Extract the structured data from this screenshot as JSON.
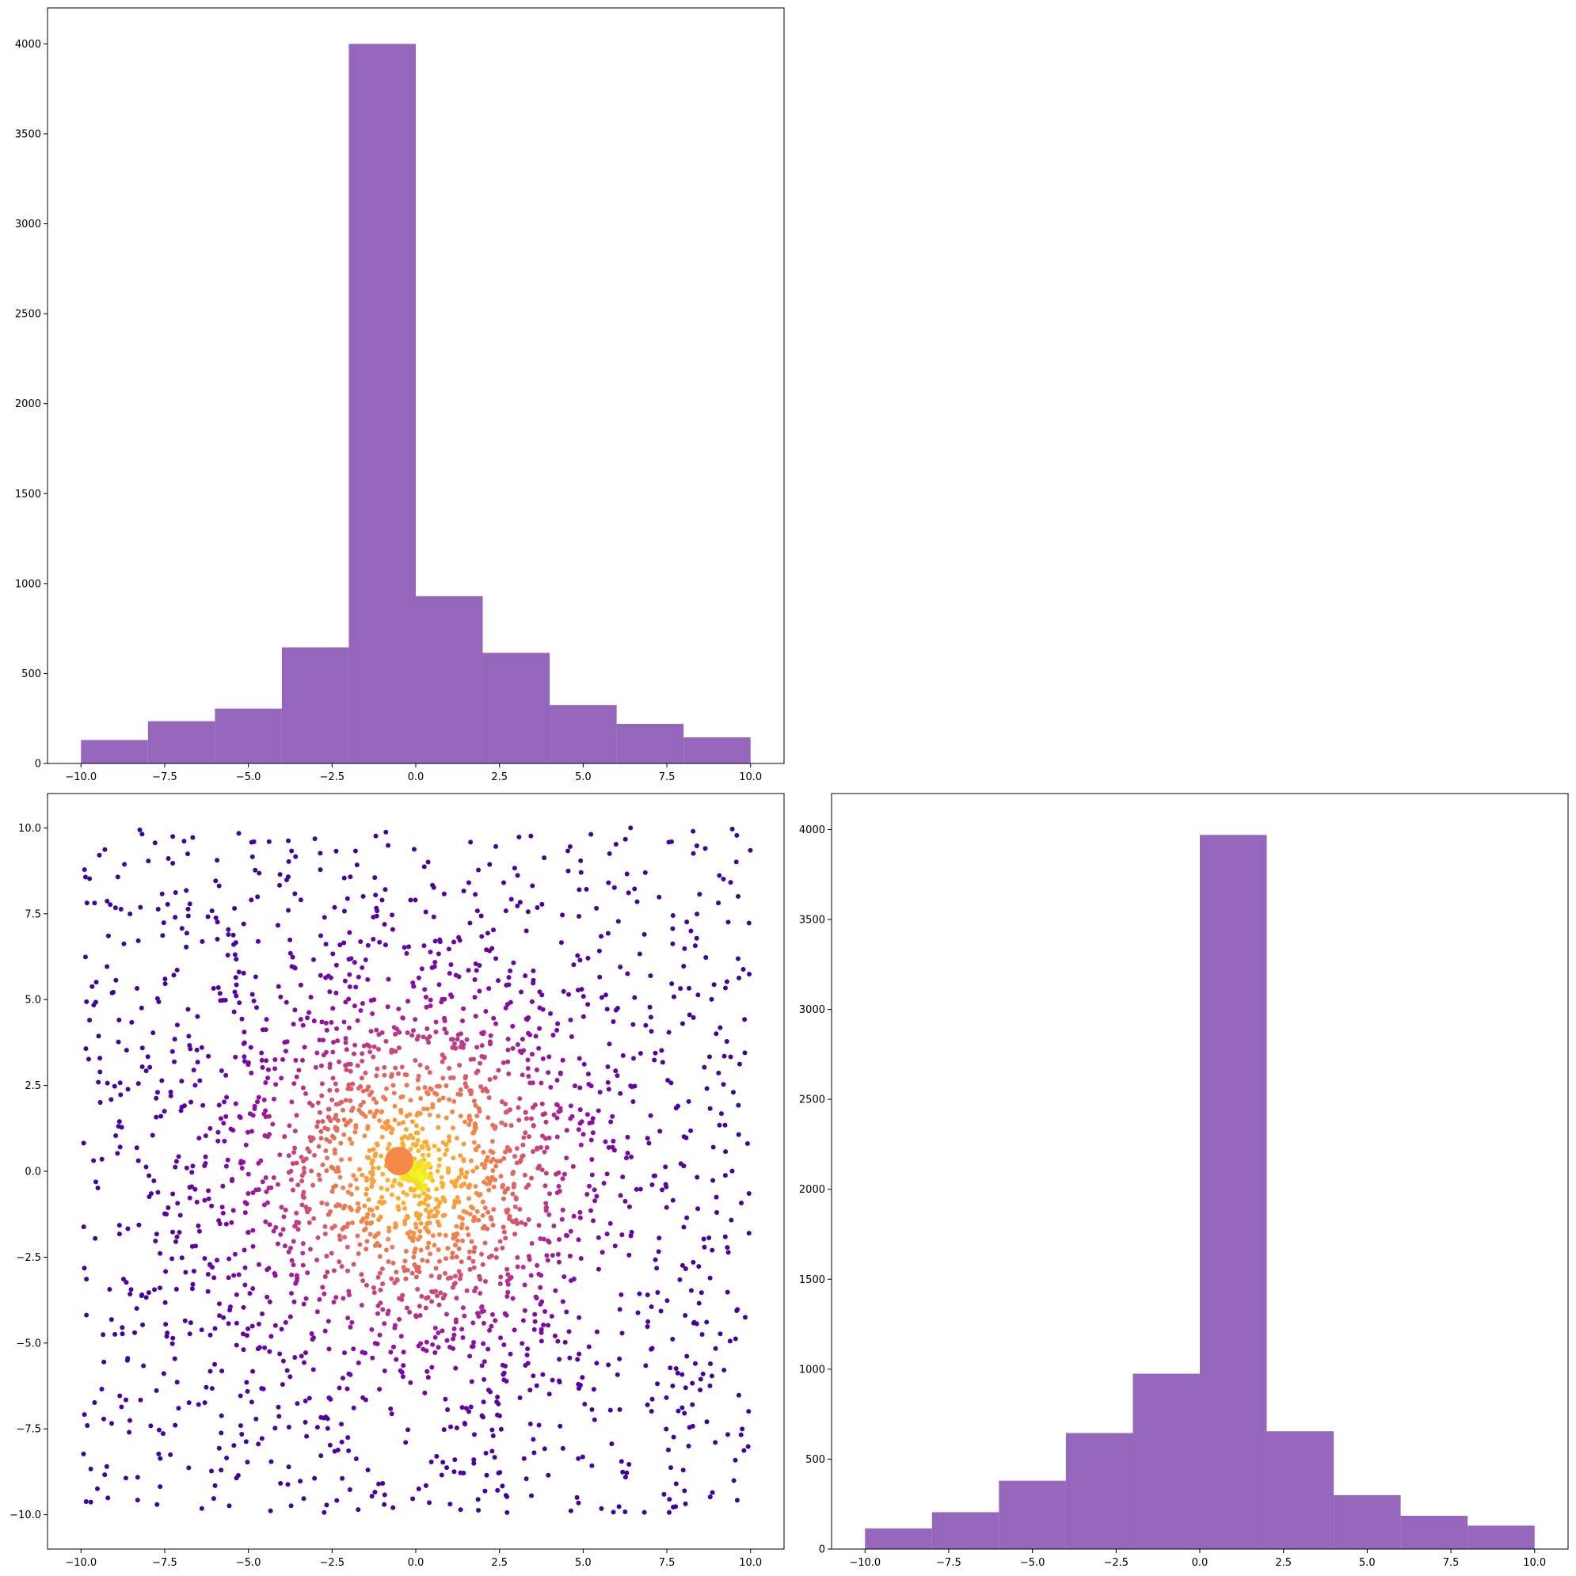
{
  "chart_data": [
    {
      "panel": "top-left",
      "type": "bar",
      "subtype": "histogram",
      "bin_edges": [
        -10,
        -8,
        -6,
        -4,
        -2,
        0,
        2,
        4,
        6,
        8,
        10
      ],
      "values": [
        130,
        235,
        305,
        645,
        4000,
        930,
        615,
        325,
        220,
        145
      ],
      "xlim": [
        -11,
        11
      ],
      "ylim": [
        0,
        4200
      ],
      "xticks": [
        "−10.0",
        "−7.5",
        "−5.0",
        "−2.5",
        "0.0",
        "2.5",
        "5.0",
        "7.5",
        "10.0"
      ],
      "xtick_values": [
        -10,
        -7.5,
        -5,
        -2.5,
        0,
        2.5,
        5,
        7.5,
        10
      ],
      "yticks": [
        "0",
        "500",
        "1000",
        "1500",
        "2000",
        "2500",
        "3000",
        "3500",
        "4000"
      ],
      "ytick_values": [
        0,
        500,
        1000,
        1500,
        2000,
        2500,
        3000,
        3500,
        4000
      ],
      "color": "#9467bd",
      "title": "",
      "xlabel": "",
      "ylabel": "",
      "grid": false
    },
    {
      "panel": "bottom-left",
      "type": "scatter",
      "description_of_data": "about 2500 points spread over [-10,10]x[-10,10], denser toward the origin; colour encodes density (plasma colormap: dark blue outer points, magenta/pink middle, orange/yellow at the centre); one large orange point near (-0.5, 0.3)",
      "n_points": 2500,
      "xlim": [
        -11,
        11
      ],
      "ylim": [
        -11,
        11
      ],
      "highlight_point": {
        "x": -0.5,
        "y": 0.3
      },
      "xticks": [
        "−10.0",
        "−7.5",
        "−5.0",
        "−2.5",
        "0.0",
        "2.5",
        "5.0",
        "7.5",
        "10.0"
      ],
      "xtick_values": [
        -10,
        -7.5,
        -5,
        -2.5,
        0,
        2.5,
        5,
        7.5,
        10
      ],
      "yticks": [
        "−10.0",
        "−7.5",
        "−5.0",
        "−2.5",
        "0.0",
        "2.5",
        "5.0",
        "7.5",
        "10.0"
      ],
      "ytick_values": [
        -10,
        -7.5,
        -5,
        -2.5,
        0,
        2.5,
        5,
        7.5,
        10
      ],
      "colormap": "plasma",
      "title": "",
      "xlabel": "",
      "ylabel": "",
      "grid": false
    },
    {
      "panel": "bottom-right",
      "type": "bar",
      "subtype": "histogram",
      "bin_edges": [
        -10,
        -8,
        -6,
        -4,
        -2,
        0,
        2,
        4,
        6,
        8,
        10
      ],
      "values": [
        115,
        205,
        380,
        645,
        975,
        3970,
        655,
        300,
        185,
        130
      ],
      "xlim": [
        -11,
        11
      ],
      "ylim": [
        0,
        4200
      ],
      "xticks": [
        "−10.0",
        "−7.5",
        "−5.0",
        "−2.5",
        "0.0",
        "2.5",
        "5.0",
        "7.5",
        "10.0"
      ],
      "xtick_values": [
        -10,
        -7.5,
        -5,
        -2.5,
        0,
        2.5,
        5,
        7.5,
        10
      ],
      "yticks": [
        "0",
        "500",
        "1000",
        "1500",
        "2000",
        "2500",
        "3000",
        "3500",
        "4000"
      ],
      "ytick_values": [
        0,
        500,
        1000,
        1500,
        2000,
        2500,
        3000,
        3500,
        4000
      ],
      "color": "#9467bd",
      "title": "",
      "xlabel": "",
      "ylabel": "",
      "grid": false
    }
  ]
}
